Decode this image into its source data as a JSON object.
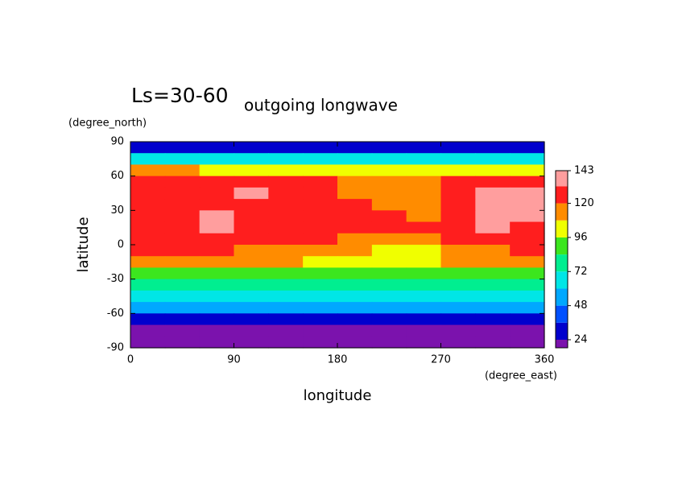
{
  "chart_data": {
    "type": "contour",
    "title": "Ls=30-60",
    "subtitle": "outgoing longwave",
    "y_label": "latitude",
    "y_unit": "(degree_north)",
    "x_label": "longitude",
    "x_unit": "(degree_east)",
    "xlim": [
      0,
      360
    ],
    "xticks": [
      0,
      90,
      180,
      270,
      360
    ],
    "ylim": [
      -90,
      90
    ],
    "yticks": [
      90,
      60,
      30,
      0,
      -30,
      -60,
      -90
    ],
    "colorbar": {
      "levels": [
        24,
        36,
        48,
        60,
        72,
        84,
        96,
        108,
        120,
        132,
        143
      ],
      "ticks": [
        24,
        48,
        72,
        96,
        120,
        143
      ],
      "colors": [
        "#7b12ad",
        "#0000cd",
        "#0050ff",
        "#00a8ff",
        "#00e6e6",
        "#00ee90",
        "#3ce61e",
        "#f0ff00",
        "#ff8c00",
        "#ff1e1e",
        "#ff9e9e"
      ]
    },
    "field": {
      "lon": [
        15,
        45,
        75,
        105,
        135,
        165,
        195,
        225,
        255,
        285,
        315,
        345
      ],
      "lat": [
        85,
        75,
        65,
        55,
        45,
        35,
        25,
        15,
        5,
        -5,
        -15,
        -25,
        -35,
        -45,
        -55,
        -65,
        -75,
        -85
      ],
      "values": [
        [
          30,
          30,
          30,
          30,
          30,
          30,
          30,
          30,
          30,
          30,
          30,
          30
        ],
        [
          62,
          62,
          62,
          62,
          62,
          62,
          62,
          62,
          62,
          62,
          62,
          62
        ],
        [
          110,
          110,
          100,
          100,
          100,
          100,
          100,
          100,
          100,
          100,
          100,
          100
        ],
        [
          125,
          125,
          125,
          125,
          122,
          122,
          112,
          112,
          112,
          122,
          125,
          125
        ],
        [
          125,
          125,
          125,
          135,
          125,
          125,
          114,
          114,
          114,
          125,
          136,
          136
        ],
        [
          125,
          125,
          125,
          125,
          125,
          125,
          125,
          114,
          114,
          125,
          136,
          136
        ],
        [
          125,
          125,
          136,
          125,
          125,
          125,
          125,
          125,
          114,
          125,
          136,
          136
        ],
        [
          125,
          125,
          136,
          125,
          125,
          125,
          125,
          125,
          125,
          125,
          136,
          125
        ],
        [
          122,
          122,
          122,
          122,
          122,
          122,
          114,
          114,
          114,
          122,
          122,
          122
        ],
        [
          122,
          122,
          122,
          114,
          114,
          114,
          114,
          104,
          104,
          114,
          114,
          122
        ],
        [
          114,
          114,
          110,
          110,
          110,
          102,
          102,
          100,
          100,
          110,
          112,
          114
        ],
        [
          95,
          95,
          95,
          95,
          95,
          95,
          95,
          90,
          90,
          95,
          95,
          95
        ],
        [
          80,
          80,
          80,
          80,
          80,
          80,
          80,
          80,
          80,
          80,
          80,
          80
        ],
        [
          62,
          62,
          62,
          62,
          62,
          62,
          62,
          62,
          62,
          62,
          62,
          62
        ],
        [
          50,
          50,
          50,
          50,
          50,
          50,
          50,
          50,
          50,
          50,
          50,
          50
        ],
        [
          30,
          30,
          30,
          30,
          30,
          30,
          30,
          30,
          30,
          30,
          30,
          30
        ],
        [
          18,
          18,
          18,
          18,
          18,
          18,
          18,
          18,
          18,
          18,
          18,
          18
        ],
        [
          18,
          18,
          18,
          18,
          18,
          18,
          18,
          18,
          18,
          18,
          18,
          18
        ]
      ]
    }
  }
}
